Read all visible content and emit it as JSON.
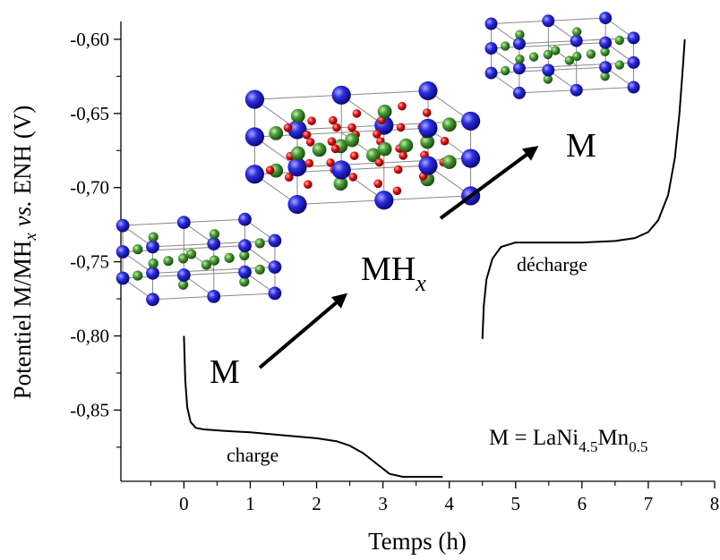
{
  "chart_data": {
    "type": "line",
    "title": "",
    "xlabel": "Temps (h)",
    "ylabel": {
      "main": "Potentiel M/MH",
      "sub": "x",
      "italic_part": "vs.",
      "tail": "ENH (V)"
    },
    "xlim": [
      -0.95,
      8
    ],
    "ylim": [
      -0.898,
      -0.588
    ],
    "x_ticks": [
      0,
      1,
      2,
      3,
      4,
      5,
      6,
      7,
      8
    ],
    "x_tick_labels": [
      "0",
      "1",
      "2",
      "3",
      "4",
      "5",
      "6",
      "7",
      "8"
    ],
    "y_ticks": [
      -0.6,
      -0.65,
      -0.7,
      -0.75,
      -0.8,
      -0.85
    ],
    "y_tick_labels": [
      "-0,60",
      "-0,65",
      "-0,70",
      "-0,75",
      "-0,80",
      "-0,85"
    ],
    "grid": false,
    "series": [
      {
        "points": [
          [
            0.0,
            -0.8
          ],
          [
            0.02,
            -0.83
          ],
          [
            0.05,
            -0.848
          ],
          [
            0.1,
            -0.858
          ],
          [
            0.18,
            -0.862
          ],
          [
            0.3,
            -0.863
          ],
          [
            0.6,
            -0.864
          ],
          [
            1.0,
            -0.865
          ],
          [
            1.5,
            -0.867
          ],
          [
            2.0,
            -0.869
          ],
          [
            2.3,
            -0.871
          ],
          [
            2.5,
            -0.874
          ],
          [
            2.7,
            -0.879
          ],
          [
            2.9,
            -0.886
          ],
          [
            3.1,
            -0.893
          ],
          [
            3.3,
            -0.895
          ],
          [
            3.5,
            -0.895
          ],
          [
            3.7,
            -0.895
          ],
          [
            3.9,
            -0.895
          ]
        ]
      },
      {
        "points": [
          [
            4.5,
            -0.802
          ],
          [
            4.52,
            -0.78
          ],
          [
            4.56,
            -0.762
          ],
          [
            4.65,
            -0.748
          ],
          [
            4.78,
            -0.74
          ],
          [
            5.0,
            -0.737
          ],
          [
            5.5,
            -0.737
          ],
          [
            6.0,
            -0.737
          ],
          [
            6.5,
            -0.736
          ],
          [
            6.8,
            -0.734
          ],
          [
            7.0,
            -0.73
          ],
          [
            7.15,
            -0.722
          ],
          [
            7.3,
            -0.705
          ],
          [
            7.4,
            -0.68
          ],
          [
            7.47,
            -0.65
          ],
          [
            7.52,
            -0.62
          ],
          [
            7.55,
            -0.6
          ]
        ]
      }
    ],
    "annotations": {
      "m_start": "M",
      "mhx_main": "MH",
      "mhx_sub": "x",
      "m_end": "M",
      "charge": "charge",
      "discharge": "décharge",
      "formula": {
        "prefix": "M = LaNi",
        "sub1": "4.5",
        "mid": "Mn",
        "sub2": "0.5"
      }
    },
    "atom_colors": {
      "la": "#1c1ccf",
      "ni": "#3f8f2f",
      "h": "#d11a1a",
      "frame": "#888888"
    }
  }
}
